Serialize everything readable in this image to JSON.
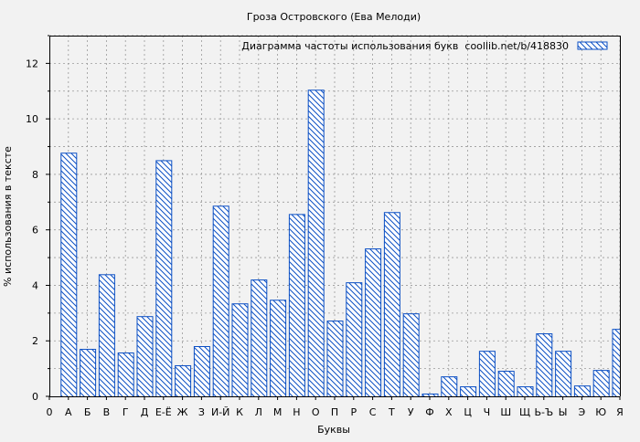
{
  "chart_data": {
    "type": "bar",
    "title": "Гроза Островского (Ева Мелоди)",
    "xlabel": "Буквы",
    "ylabel": "% использования в тексте",
    "x_origin_label": "0",
    "categories": [
      "А",
      "Б",
      "В",
      "Г",
      "Д",
      "Е-Ё",
      "Ж",
      "З",
      "И-Й",
      "К",
      "Л",
      "М",
      "Н",
      "О",
      "П",
      "Р",
      "С",
      "Т",
      "У",
      "Ф",
      "Х",
      "Ц",
      "Ч",
      "Ш",
      "Щ",
      "Ь-Ъ",
      "Ы",
      "Э",
      "Ю",
      "Я"
    ],
    "values": [
      8.78,
      1.71,
      4.4,
      1.58,
      2.89,
      8.51,
      1.12,
      1.81,
      6.87,
      3.35,
      4.21,
      3.48,
      6.57,
      11.05,
      2.73,
      4.11,
      5.33,
      6.64,
      2.99,
      0.1,
      0.72,
      0.36,
      1.64,
      0.92,
      0.36,
      2.27,
      1.64,
      0.39,
      0.95,
      2.43
    ],
    "yticks": [
      0,
      2,
      4,
      6,
      8,
      10,
      12
    ],
    "ylim": [
      0,
      13
    ],
    "grid": true,
    "legend": {
      "label": "Диаграмма частоты использования букв  coollib.net/b/418830",
      "placement": "top-right"
    },
    "colors": {
      "bar_stroke": "#0b4fc4",
      "hatch": "#0b4fc4",
      "bar_fill": "#ffffff",
      "background": "#f2f2f2"
    }
  }
}
